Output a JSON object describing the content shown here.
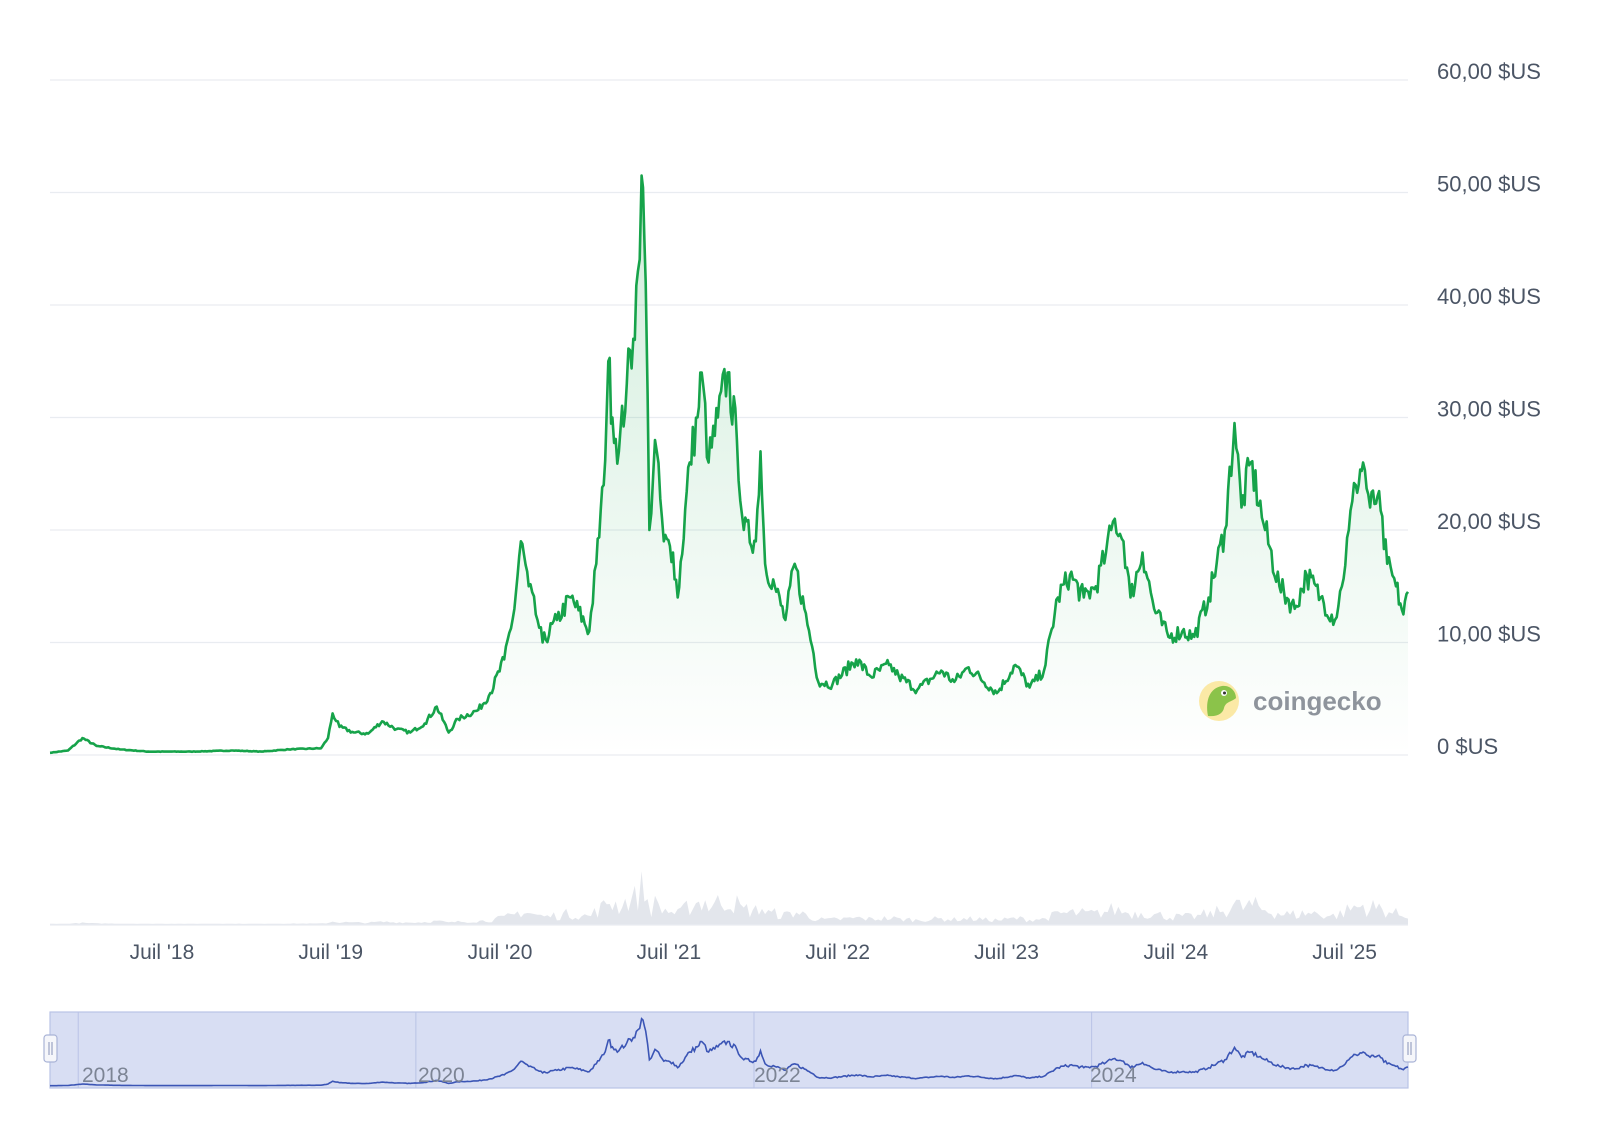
{
  "colors": {
    "line": "#16a34a",
    "area_top": "#16a34a",
    "grid": "#e9ecf1",
    "volume": "#e3e6ec",
    "navigator_fill": "#d8def3",
    "navigator_line": "#3b55b5",
    "navigator_border": "#b9c3e6",
    "watermark": "#8e949c"
  },
  "watermark": {
    "text": "coingecko",
    "icon": "gecko-logo-icon"
  },
  "navigator": {
    "labels": [
      "2018",
      "2020",
      "2022",
      "2024"
    ],
    "handle_icon": "drag-handle-icon"
  },
  "chart_data": {
    "type": "area",
    "title": "",
    "xlabel": "",
    "ylabel": "",
    "ylim": [
      0,
      60
    ],
    "y_ticks": [
      {
        "value": 0,
        "label": "0 $US"
      },
      {
        "value": 10,
        "label": "10,00 $US"
      },
      {
        "value": 20,
        "label": "20,00 $US"
      },
      {
        "value": 30,
        "label": "30,00 $US"
      },
      {
        "value": 40,
        "label": "40,00 $US"
      },
      {
        "value": 50,
        "label": "50,00 $US"
      },
      {
        "value": 60,
        "label": "60,00 $US"
      }
    ],
    "xlim": [
      "2017-11-01",
      "2025-11-15"
    ],
    "x_ticks": [
      {
        "date": "2018-07-01",
        "label": "Juil '18"
      },
      {
        "date": "2019-07-01",
        "label": "Juil '19"
      },
      {
        "date": "2020-07-01",
        "label": "Juil '20"
      },
      {
        "date": "2021-07-01",
        "label": "Juil '21"
      },
      {
        "date": "2022-07-01",
        "label": "Juil '22"
      },
      {
        "date": "2023-07-01",
        "label": "Juil '23"
      },
      {
        "date": "2024-07-01",
        "label": "Juil '24"
      },
      {
        "date": "2025-07-01",
        "label": "Juil '25"
      }
    ],
    "grid": true,
    "legend": "none",
    "series": [
      {
        "points": [
          [
            "2017-11-01",
            0.2
          ],
          [
            "2017-12-10",
            0.4
          ],
          [
            "2018-01-10",
            1.5
          ],
          [
            "2018-02-10",
            0.8
          ],
          [
            "2018-04-01",
            0.5
          ],
          [
            "2018-06-01",
            0.3
          ],
          [
            "2018-09-01",
            0.3
          ],
          [
            "2018-12-01",
            0.4
          ],
          [
            "2019-02-01",
            0.3
          ],
          [
            "2019-04-01",
            0.5
          ],
          [
            "2019-06-10",
            0.6
          ],
          [
            "2019-06-25",
            1.5
          ],
          [
            "2019-07-05",
            3.7
          ],
          [
            "2019-07-20",
            2.5
          ],
          [
            "2019-08-20",
            2.0
          ],
          [
            "2019-09-20",
            1.9
          ],
          [
            "2019-10-20",
            3.0
          ],
          [
            "2019-11-20",
            2.3
          ],
          [
            "2019-12-20",
            2.0
          ],
          [
            "2020-01-20",
            2.8
          ],
          [
            "2020-02-15",
            4.3
          ],
          [
            "2020-03-12",
            2.0
          ],
          [
            "2020-04-01",
            3.2
          ],
          [
            "2020-05-15",
            4.0
          ],
          [
            "2020-06-10",
            5.5
          ],
          [
            "2020-07-10",
            8.5
          ],
          [
            "2020-08-01",
            13.0
          ],
          [
            "2020-08-15",
            19.0
          ],
          [
            "2020-09-01",
            15.0
          ],
          [
            "2020-09-20",
            12.0
          ],
          [
            "2020-10-01",
            10.0
          ],
          [
            "2020-11-01",
            12.0
          ],
          [
            "2020-12-01",
            14.0
          ],
          [
            "2021-01-10",
            11.0
          ],
          [
            "2021-01-25",
            17.0
          ],
          [
            "2021-02-10",
            24.0
          ],
          [
            "2021-02-20",
            35.0
          ],
          [
            "2021-03-01",
            30.0
          ],
          [
            "2021-03-15",
            27.0
          ],
          [
            "2021-04-01",
            33.0
          ],
          [
            "2021-04-15",
            37.0
          ],
          [
            "2021-04-25",
            43.0
          ],
          [
            "2021-05-03",
            51.5
          ],
          [
            "2021-05-12",
            42.0
          ],
          [
            "2021-05-20",
            20.0
          ],
          [
            "2021-06-01",
            28.0
          ],
          [
            "2021-06-20",
            19.0
          ],
          [
            "2021-07-10",
            18.0
          ],
          [
            "2021-07-20",
            14.0
          ],
          [
            "2021-08-15",
            26.0
          ],
          [
            "2021-09-01",
            30.0
          ],
          [
            "2021-09-10",
            34.0
          ],
          [
            "2021-09-25",
            26.0
          ],
          [
            "2021-10-15",
            30.0
          ],
          [
            "2021-11-05",
            34.0
          ],
          [
            "2021-11-25",
            28.0
          ],
          [
            "2021-12-10",
            20.0
          ],
          [
            "2022-01-05",
            19.0
          ],
          [
            "2022-01-15",
            27.0
          ],
          [
            "2022-01-25",
            17.0
          ],
          [
            "2022-02-15",
            15.0
          ],
          [
            "2022-03-10",
            12.0
          ],
          [
            "2022-03-30",
            17.0
          ],
          [
            "2022-04-20",
            13.0
          ],
          [
            "2022-05-10",
            9.0
          ],
          [
            "2022-05-20",
            6.5
          ],
          [
            "2022-06-20",
            6.3
          ],
          [
            "2022-08-10",
            8.5
          ],
          [
            "2022-09-10",
            7.0
          ],
          [
            "2022-10-20",
            8.0
          ],
          [
            "2022-11-10",
            7.0
          ],
          [
            "2022-12-20",
            5.8
          ],
          [
            "2023-02-10",
            7.5
          ],
          [
            "2023-03-10",
            6.5
          ],
          [
            "2023-04-10",
            7.8
          ],
          [
            "2023-06-10",
            5.5
          ],
          [
            "2023-07-20",
            8.0
          ],
          [
            "2023-08-20",
            6.0
          ],
          [
            "2023-09-20",
            7.5
          ],
          [
            "2023-10-20",
            14.0
          ],
          [
            "2023-11-15",
            16.0
          ],
          [
            "2023-12-15",
            14.0
          ],
          [
            "2024-01-10",
            15.0
          ],
          [
            "2024-02-01",
            18.0
          ],
          [
            "2024-02-20",
            21.0
          ],
          [
            "2024-03-10",
            19.0
          ],
          [
            "2024-03-25",
            14.0
          ],
          [
            "2024-04-20",
            18.0
          ],
          [
            "2024-05-15",
            13.0
          ],
          [
            "2024-06-15",
            10.5
          ],
          [
            "2024-07-15",
            11.0
          ],
          [
            "2024-08-10",
            10.5
          ],
          [
            "2024-09-10",
            14.0
          ],
          [
            "2024-10-15",
            20.0
          ],
          [
            "2024-11-05",
            29.5
          ],
          [
            "2024-11-20",
            22.0
          ],
          [
            "2024-12-10",
            26.0
          ],
          [
            "2025-01-10",
            20.0
          ],
          [
            "2025-02-10",
            15.0
          ],
          [
            "2025-03-15",
            13.0
          ],
          [
            "2025-04-10",
            16.0
          ],
          [
            "2025-05-10",
            14.0
          ],
          [
            "2025-06-10",
            12.0
          ],
          [
            "2025-06-25",
            15.0
          ],
          [
            "2025-07-10",
            20.0
          ],
          [
            "2025-07-25",
            24.0
          ],
          [
            "2025-08-10",
            26.0
          ],
          [
            "2025-08-25",
            22.0
          ],
          [
            "2025-09-10",
            23.0
          ],
          [
            "2025-10-01",
            17.0
          ],
          [
            "2025-10-20",
            15.0
          ],
          [
            "2025-11-05",
            12.5
          ],
          [
            "2025-11-15",
            14.5
          ]
        ]
      }
    ]
  }
}
